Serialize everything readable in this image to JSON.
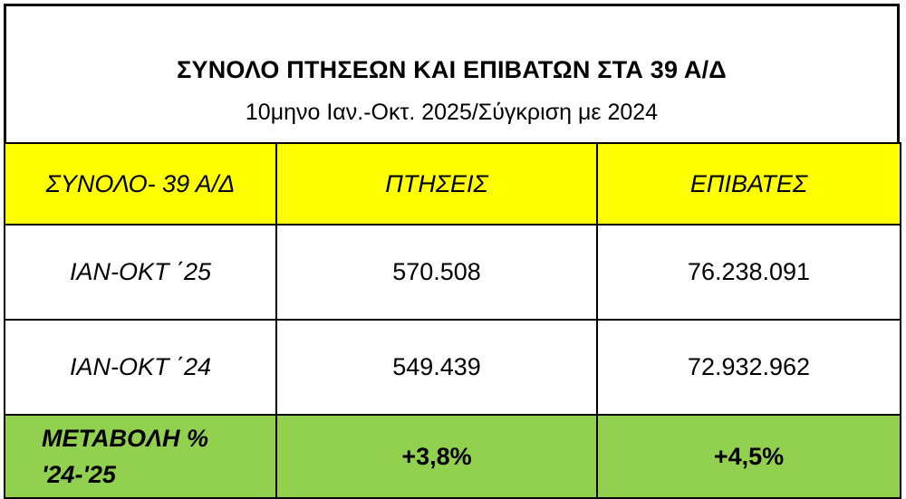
{
  "title": "ΣΥΝΟΛΟ ΠΤΗΣΕΩΝ ΚΑΙ ΕΠΙΒΑΤΩΝ ΣΤΑ 39 Α/Δ",
  "subtitle": "10μηνο Ιαν.-Οκτ. 2025/Σύγκριση με 2024",
  "colors": {
    "header_bg": "#ffff00",
    "change_bg": "#92d050",
    "border": "#000000"
  },
  "table": {
    "headers": [
      "ΣΥΝΟΛΟ- 39 Α/Δ",
      "ΠΤΗΣΕΙΣ",
      "ΕΠΙΒΑΤΕΣ"
    ],
    "rows": [
      {
        "label": "ΙΑΝ-ΟΚΤ ΄25",
        "flights": "570.508",
        "passengers": "76.238.091"
      },
      {
        "label": "ΙΑΝ-ΟΚΤ ΄24",
        "flights": "549.439",
        "passengers": "72.932.962"
      }
    ],
    "change": {
      "label_line1": "ΜΕΤΑΒΟΛΗ %",
      "label_line2": "'24-'25",
      "flights": "+3,8%",
      "passengers": "+4,5%"
    }
  }
}
